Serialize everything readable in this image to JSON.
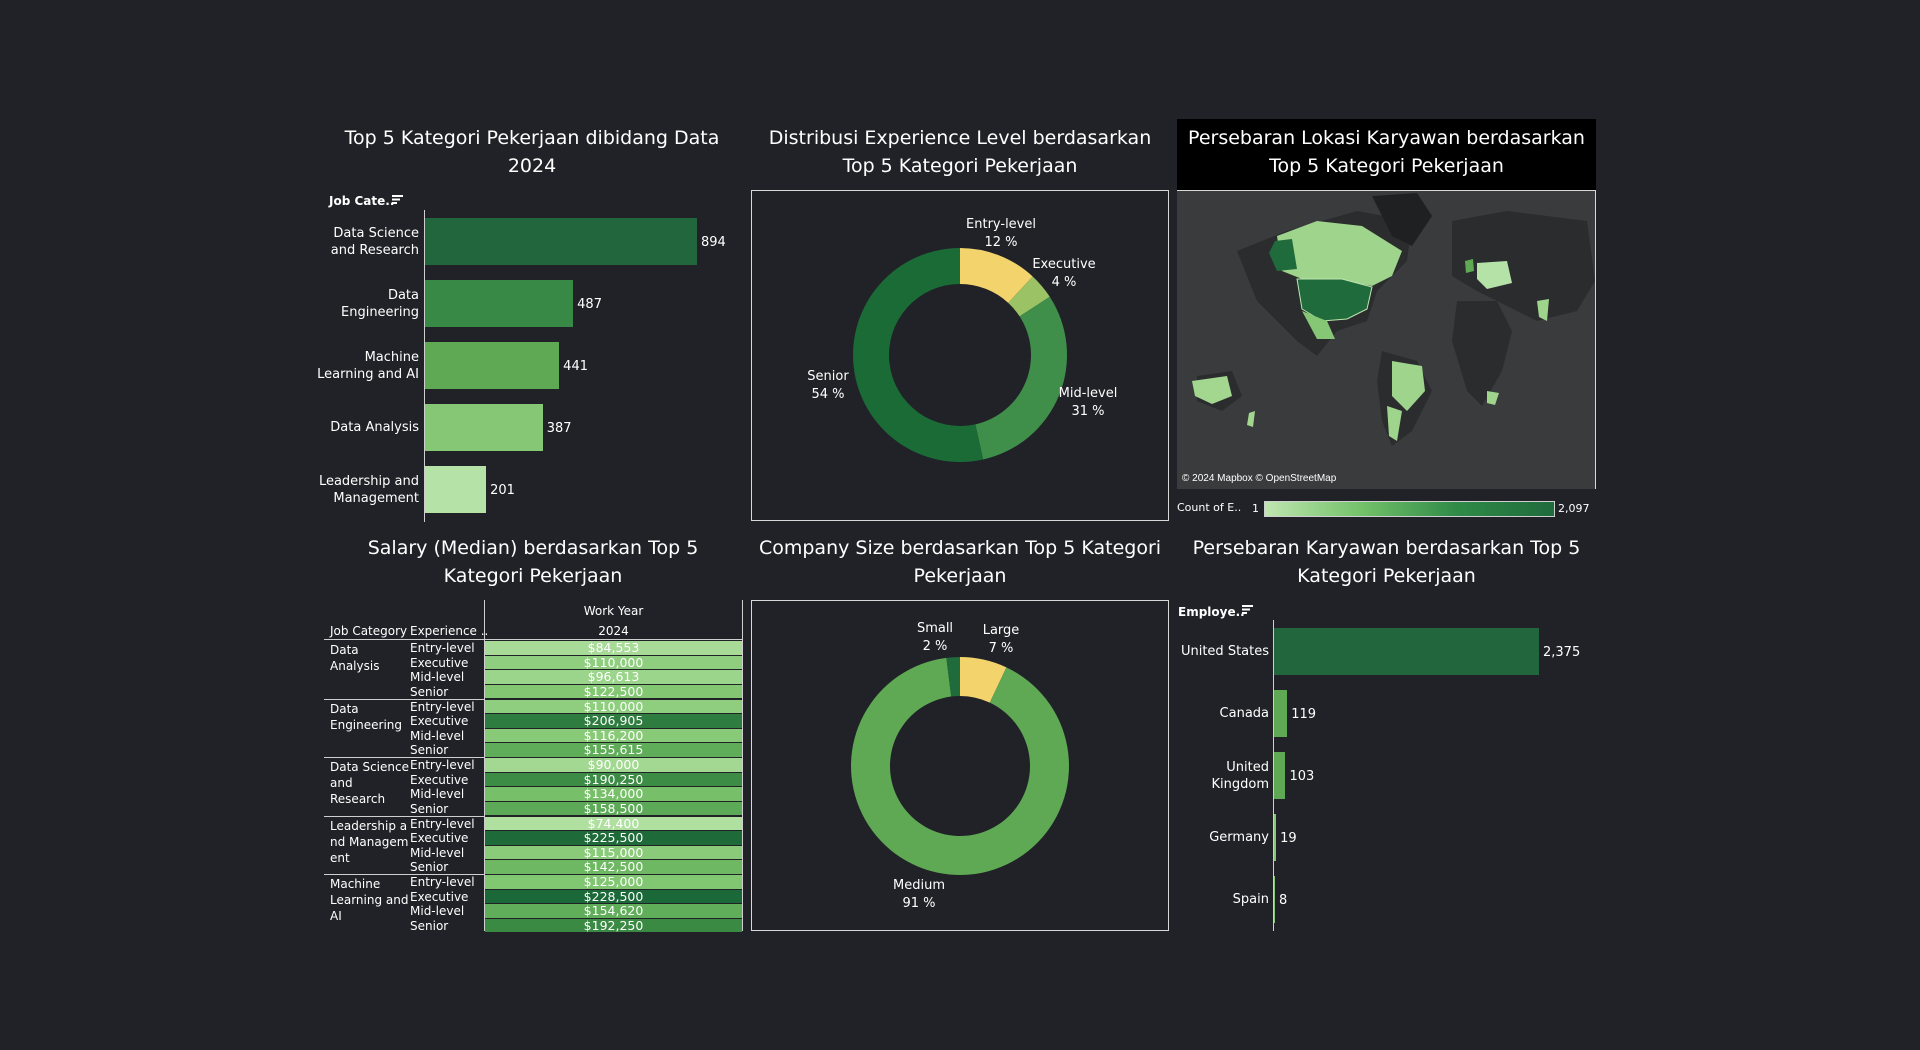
{
  "colors": {
    "background": "#202227",
    "green_dark": "#21663d",
    "green_mid": "#378945",
    "green": "#5fa854",
    "green_light": "#86c775",
    "green_pale": "#b4e2a7",
    "yellow": "#f3d36c",
    "olive": "#9bc264"
  },
  "panels": {
    "job_category": {
      "title": "Top 5 Kategori Pekerjaan dibidang Data 2024",
      "header": "Job Cate..",
      "chart_data": {
        "type": "bar",
        "orientation": "horizontal",
        "categories": [
          "Data Science and Research",
          "Data Engineering",
          "Machine Learning and AI",
          "Data Analysis",
          "Leadership and Management"
        ],
        "category_lines": [
          [
            "Data Science",
            "and Research"
          ],
          [
            "Data",
            "Engineering"
          ],
          [
            "Machine",
            "Learning and AI"
          ],
          [
            "Data Analysis"
          ],
          [
            "Leadership and",
            "Management"
          ]
        ],
        "values": [
          894,
          487,
          441,
          387,
          201
        ],
        "value_labels": [
          "894",
          "487",
          "441",
          "387",
          "201"
        ]
      }
    },
    "experience": {
      "title": "Distribusi Experience Level berdasarkan Top 5 Kategori Pekerjaan",
      "chart_data": {
        "type": "pie",
        "donut": true,
        "slices": [
          {
            "label": "Entry-level",
            "pct_label": "12 %",
            "value": 12,
            "color": "#f3d36c"
          },
          {
            "label": "Executive",
            "pct_label": "4 %",
            "value": 4,
            "color": "#9bc264"
          },
          {
            "label": "Mid-level",
            "pct_label": "31 %",
            "value": 31,
            "color": "#3f8f4a"
          },
          {
            "label": "Senior",
            "pct_label": "54 %",
            "value": 54,
            "color": "#1a6b36"
          }
        ]
      }
    },
    "map": {
      "title": "Persebaran Lokasi Karyawan berdasarkan Top 5 Kategori Pekerjaan",
      "attribution": "© 2024 Mapbox © OpenStreetMap",
      "legend_label": "Count of E..",
      "legend_min": "1",
      "legend_max": "2,097"
    },
    "salary": {
      "title": "Salary (Median) berdasarkan Top 5 Kategori Pekerjaan",
      "col_header_top": "Work Year",
      "col_header_year": "2024",
      "col_job": "Job Category",
      "col_exp": "Experience ..",
      "chart_data": {
        "type": "table",
        "groups": [
          {
            "lines": [
              "Data",
              "Analysis"
            ],
            "rows": [
              {
                "exp": "Entry-level",
                "salary": "$84,553",
                "value": 84553
              },
              {
                "exp": "Executive",
                "salary": "$110,000",
                "value": 110000
              },
              {
                "exp": "Mid-level",
                "salary": "$96,613",
                "value": 96613
              },
              {
                "exp": "Senior",
                "salary": "$122,500",
                "value": 122500
              }
            ]
          },
          {
            "lines": [
              "Data",
              "Engineering"
            ],
            "rows": [
              {
                "exp": "Entry-level",
                "salary": "$110,000",
                "value": 110000
              },
              {
                "exp": "Executive",
                "salary": "$206,905",
                "value": 206905
              },
              {
                "exp": "Mid-level",
                "salary": "$116,200",
                "value": 116200
              },
              {
                "exp": "Senior",
                "salary": "$155,615",
                "value": 155615
              }
            ]
          },
          {
            "lines": [
              "Data Science",
              "and",
              "Research"
            ],
            "rows": [
              {
                "exp": "Entry-level",
                "salary": "$90,000",
                "value": 90000
              },
              {
                "exp": "Executive",
                "salary": "$190,250",
                "value": 190250
              },
              {
                "exp": "Mid-level",
                "salary": "$134,000",
                "value": 134000
              },
              {
                "exp": "Senior",
                "salary": "$158,500",
                "value": 158500
              }
            ]
          },
          {
            "lines": [
              "Leadership a",
              "nd Managem",
              "ent"
            ],
            "rows": [
              {
                "exp": "Entry-level",
                "salary": "$74,400",
                "value": 74400
              },
              {
                "exp": "Executive",
                "salary": "$225,500",
                "value": 225500
              },
              {
                "exp": "Mid-level",
                "salary": "$115,000",
                "value": 115000
              },
              {
                "exp": "Senior",
                "salary": "$142,500",
                "value": 142500
              }
            ]
          },
          {
            "lines": [
              "Machine",
              "Learning and",
              "AI"
            ],
            "rows": [
              {
                "exp": "Entry-level",
                "salary": "$125,000",
                "value": 125000
              },
              {
                "exp": "Executive",
                "salary": "$228,500",
                "value": 228500
              },
              {
                "exp": "Mid-level",
                "salary": "$154,620",
                "value": 154620
              },
              {
                "exp": "Senior",
                "salary": "$192,250",
                "value": 192250
              }
            ]
          }
        ]
      }
    },
    "company_size": {
      "title": "Company Size berdasarkan Top 5 Kategori Pekerjaan",
      "chart_data": {
        "type": "pie",
        "donut": true,
        "slices": [
          {
            "label": "Large",
            "pct_label": "7 %",
            "value": 7,
            "color": "#f3d36c"
          },
          {
            "label": "Medium",
            "pct_label": "91 %",
            "value": 91,
            "color": "#5fa854"
          },
          {
            "label": "Small",
            "pct_label": "2 %",
            "value": 2,
            "color": "#1f6b3c"
          }
        ]
      }
    },
    "country": {
      "title": "Persebaran Karyawan berdasarkan Top 5 Kategori Pekerjaan",
      "header": "Employe..",
      "chart_data": {
        "type": "bar",
        "orientation": "horizontal",
        "categories": [
          "United States",
          "Canada",
          "United Kingdom",
          "Germany",
          "Spain"
        ],
        "category_lines": [
          [
            "United States"
          ],
          [
            "Canada"
          ],
          [
            "United",
            "Kingdom"
          ],
          [
            "Germany"
          ],
          [
            "Spain"
          ]
        ],
        "values": [
          2375,
          119,
          103,
          19,
          8
        ],
        "value_labels": [
          "2,375",
          "119",
          "103",
          "19",
          "8"
        ]
      }
    }
  }
}
